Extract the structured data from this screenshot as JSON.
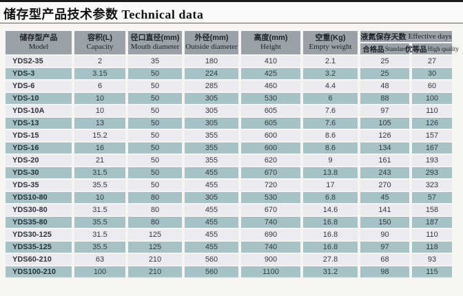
{
  "title": "储存型产品技术参数 Technical data",
  "table": {
    "columns": [
      {
        "zh": "储存型产品",
        "en": "Model"
      },
      {
        "zh": "容积(L)",
        "en": "Capacity"
      },
      {
        "zh": "径口直径(mm)",
        "en": "Mouth diameter"
      },
      {
        "zh": "外径(mm)",
        "en": "Outside diameter"
      },
      {
        "zh": "高度(mm)",
        "en": "Height"
      },
      {
        "zh": "空重(Kg)",
        "en": "Empty weight"
      }
    ],
    "group_column": {
      "zh": "液氮保存天数",
      "en": "Effective days",
      "sub": [
        {
          "zh": "合格品",
          "en": "Standard"
        },
        {
          "zh": "优等品",
          "en": "High quality"
        }
      ]
    },
    "rows": [
      [
        "YDS2-35",
        "2",
        "35",
        "180",
        "410",
        "2.1",
        "25",
        "27"
      ],
      [
        "YDS-3",
        "3.15",
        "50",
        "224",
        "425",
        "3.2",
        "25",
        "30"
      ],
      [
        "YDS-6",
        "6",
        "50",
        "285",
        "460",
        "4.4",
        "48",
        "60"
      ],
      [
        "YDS-10",
        "10",
        "50",
        "305",
        "530",
        "6",
        "88",
        "100"
      ],
      [
        "YDS-10A",
        "10",
        "50",
        "305",
        "605",
        "7.6",
        "97",
        "110"
      ],
      [
        "YDS-13",
        "13",
        "50",
        "305",
        "605",
        "7.6",
        "105",
        "126"
      ],
      [
        "YDS-15",
        "15.2",
        "50",
        "355",
        "600",
        "8.6",
        "126",
        "157"
      ],
      [
        "YDS-16",
        "16",
        "50",
        "355",
        "600",
        "8.6",
        "134",
        "167"
      ],
      [
        "YDS-20",
        "21",
        "50",
        "355",
        "620",
        "9",
        "161",
        "193"
      ],
      [
        "YDS-30",
        "31.5",
        "50",
        "455",
        "670",
        "13.8",
        "243",
        "293"
      ],
      [
        "YDS-35",
        "35.5",
        "50",
        "455",
        "720",
        "17",
        "270",
        "323"
      ],
      [
        "YDS10-80",
        "10",
        "80",
        "305",
        "530",
        "6.8",
        "45",
        "57"
      ],
      [
        "YDS30-80",
        "31.5",
        "80",
        "455",
        "670",
        "14.6",
        "141",
        "158"
      ],
      [
        "YDS35-80",
        "35.5",
        "80",
        "455",
        "740",
        "16.8",
        "150",
        "187"
      ],
      [
        "YDS30-125",
        "31.5",
        "125",
        "455",
        "690",
        "16.8",
        "90",
        "110"
      ],
      [
        "YDS35-125",
        "35.5",
        "125",
        "455",
        "740",
        "16.8",
        "97",
        "118"
      ],
      [
        "YDS60-210",
        "63",
        "210",
        "560",
        "900",
        "27.8",
        "68",
        "93"
      ],
      [
        "YDS100-210",
        "100",
        "210",
        "560",
        "1100",
        "31.2",
        "98",
        "115"
      ]
    ]
  },
  "colors": {
    "header_bg": "#9aa1a8",
    "row_light": "#eaeaef",
    "row_teal": "#a7c2c7",
    "top_bar": "#1b1b1b",
    "text": "#33383c"
  }
}
